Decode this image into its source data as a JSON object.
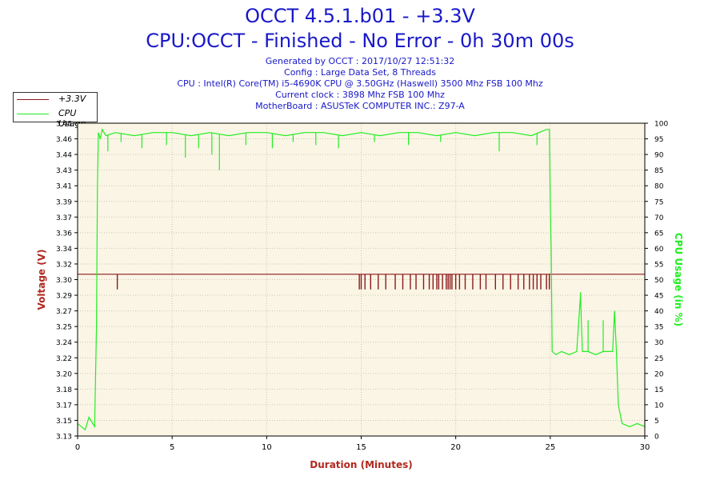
{
  "header": {
    "title_line1": "OCCT 4.5.1.b01 - +3.3V",
    "title_line2": "CPU:OCCT - Finished - No Error - 0h 30m 00s",
    "info": [
      "Generated by OCCT : 2017/10/27 12:51:32",
      "Config : Large Data Set, 8 Threads",
      "CPU : Intel(R) Core(TM) i5-4690K CPU @ 3.50GHz (Haswell) 3500 Mhz FSB 100 Mhz",
      "Current clock : 3898 Mhz FSB 100 Mhz",
      "MotherBoard : ASUSTeK COMPUTER INC.: Z97-A"
    ]
  },
  "legend": {
    "items": [
      {
        "label": "+3.3V",
        "color": "#8b1a1a"
      },
      {
        "label": "CPU Usage",
        "color": "#22ee22"
      }
    ]
  },
  "chart_data": {
    "type": "line",
    "xlabel": "Duration (Minutes)",
    "ylabel": "Voltage (V)",
    "y2label": "CPU Usage (in %)",
    "xlim": [
      0,
      30
    ],
    "ylim": [
      3.13,
      3.48
    ],
    "y2lim": [
      0,
      100
    ],
    "x_ticks": [
      "0",
      "5",
      "10",
      "15",
      "20",
      "25",
      "30"
    ],
    "y_ticks": [
      "3.13",
      "3.15",
      "3.17",
      "3.18",
      "3.20",
      "3.22",
      "3.24",
      "3.25",
      "3.27",
      "3.29",
      "3.30",
      "3.32",
      "3.34",
      "3.36",
      "3.37",
      "3.39",
      "3.41",
      "3.43",
      "3.44",
      "3.46",
      "3.48"
    ],
    "y2_ticks": [
      "0",
      "5",
      "10",
      "15",
      "20",
      "25",
      "30",
      "35",
      "40",
      "45",
      "50",
      "55",
      "60",
      "65",
      "70",
      "75",
      "80",
      "85",
      "90",
      "95",
      "100"
    ],
    "grid": true,
    "legend_position": "top-left",
    "background": "#fbf5e6",
    "series": [
      {
        "name": "+3.3V",
        "axis": "left",
        "color": "#8b1a1a",
        "baseline": 3.311,
        "dips_to": 3.294,
        "dip_x": [
          2.1,
          14.9,
          15.0,
          15.2,
          15.5,
          15.9,
          16.3,
          16.8,
          17.2,
          17.6,
          17.9,
          18.3,
          18.6,
          18.8,
          19.0,
          19.1,
          19.3,
          19.5,
          19.6,
          19.7,
          19.8,
          20.0,
          20.2,
          20.5,
          20.9,
          21.3,
          21.6,
          22.1,
          22.5,
          22.9,
          23.3,
          23.6,
          23.9,
          24.1,
          24.3,
          24.5,
          24.8,
          24.95
        ]
      },
      {
        "name": "CPU Usage",
        "axis": "right",
        "color": "#22ee22",
        "x": [
          0,
          0.2,
          0.4,
          0.6,
          0.8,
          0.9,
          1.0,
          1.05,
          1.1,
          1.2,
          1.3,
          1.5,
          2.0,
          3.0,
          4.0,
          5.0,
          6.0,
          7.0,
          8.0,
          9.0,
          10.0,
          11.0,
          12.0,
          13.0,
          14.0,
          15.0,
          16.0,
          17.0,
          18.0,
          19.0,
          20.0,
          21.0,
          22.0,
          23.0,
          24.0,
          24.8,
          24.95,
          25.0,
          25.05,
          25.1,
          25.3,
          25.6,
          26.0,
          26.4,
          26.6,
          26.7,
          26.8,
          27.0,
          27.4,
          27.8,
          28.1,
          28.3,
          28.4,
          28.5,
          28.6,
          28.8,
          29.2,
          29.6,
          30.0
        ],
        "values": [
          4,
          3,
          2,
          6,
          4,
          3,
          35,
          80,
          97,
          95,
          98,
          96,
          97,
          96,
          97,
          97,
          96,
          97,
          96,
          97,
          97,
          96,
          97,
          97,
          96,
          97,
          96,
          97,
          97,
          96,
          97,
          96,
          97,
          97,
          96,
          98,
          98,
          75,
          60,
          27,
          26,
          27,
          26,
          27,
          45,
          27,
          27,
          27,
          26,
          27,
          27,
          27,
          40,
          27,
          10,
          4,
          3,
          4,
          3
        ],
        "spikes": [
          {
            "x": 1.6,
            "min": 91
          },
          {
            "x": 2.3,
            "min": 94
          },
          {
            "x": 3.4,
            "min": 92
          },
          {
            "x": 4.7,
            "min": 93
          },
          {
            "x": 5.7,
            "min": 89
          },
          {
            "x": 6.4,
            "min": 92
          },
          {
            "x": 7.1,
            "min": 90
          },
          {
            "x": 7.5,
            "min": 85
          },
          {
            "x": 8.9,
            "min": 93
          },
          {
            "x": 10.3,
            "min": 92
          },
          {
            "x": 11.4,
            "min": 94
          },
          {
            "x": 12.6,
            "min": 93
          },
          {
            "x": 13.8,
            "min": 92
          },
          {
            "x": 15.7,
            "min": 94
          },
          {
            "x": 17.5,
            "min": 93
          },
          {
            "x": 19.2,
            "min": 94
          },
          {
            "x": 22.3,
            "min": 91
          },
          {
            "x": 24.3,
            "min": 93
          },
          {
            "x": 26.6,
            "max": 46
          },
          {
            "x": 27.0,
            "max": 37
          },
          {
            "x": 27.8,
            "max": 37
          },
          {
            "x": 28.4,
            "max": 40
          }
        ]
      }
    ]
  }
}
